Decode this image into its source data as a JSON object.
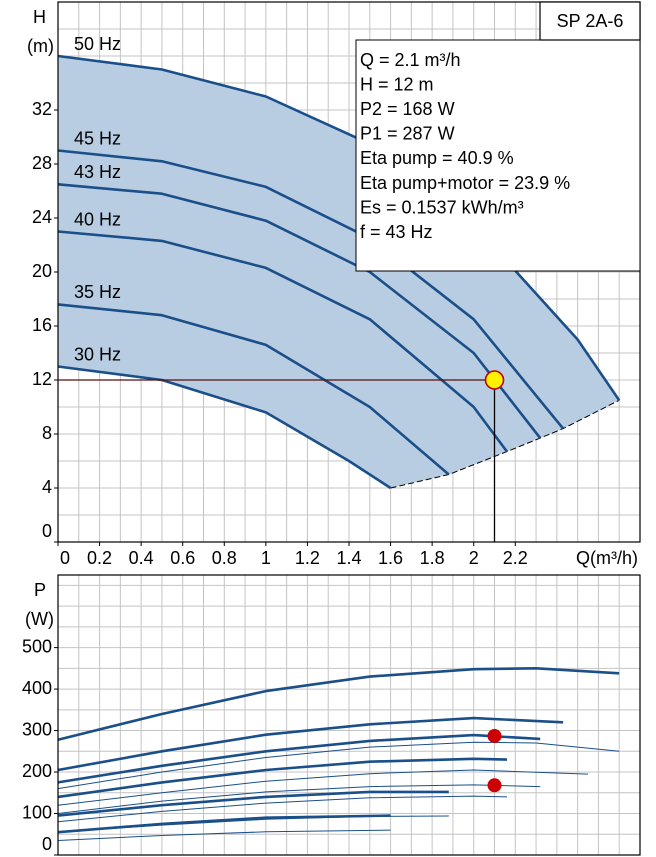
{
  "chart_data": [
    {
      "type": "line",
      "title": "SP 2A-6",
      "ylabel": "H",
      "yunit": "(m)",
      "xlabel": "Q(m³/h)",
      "xlim": [
        0,
        2.8
      ],
      "ylim": [
        0,
        40
      ],
      "xticks": [
        0,
        0.2,
        0.4,
        0.6,
        0.8,
        1,
        1.2,
        1.4,
        1.6,
        1.8,
        2,
        2.2
      ],
      "yticks": [
        0,
        4,
        8,
        12,
        16,
        20,
        24,
        28,
        32
      ],
      "xgrid": [
        0,
        0.1,
        0.2,
        0.3,
        0.4,
        0.5,
        0.6,
        0.7,
        0.8,
        0.9,
        1,
        1.1,
        1.2,
        1.3,
        1.4,
        1.5,
        1.6,
        1.7,
        1.8,
        1.9,
        2,
        2.1,
        2.2,
        2.3,
        2.4,
        2.5,
        2.6,
        2.7,
        2.8
      ],
      "ygrid": [
        0,
        2,
        4,
        6,
        8,
        10,
        12,
        14,
        16,
        18,
        20,
        22,
        24,
        26,
        28,
        30,
        32,
        34,
        36,
        38,
        40
      ],
      "color": "#1b4f8a",
      "area_color": "#b9cde2",
      "series": [
        {
          "name": "50 Hz",
          "x": [
            0,
            0.5,
            1,
            1.5,
            2,
            2.5,
            2.7
          ],
          "values": [
            36,
            35,
            33,
            29.5,
            23.5,
            15,
            10.5
          ]
        },
        {
          "name": "45 Hz",
          "x": [
            0,
            0.5,
            1,
            1.5,
            2,
            2.43
          ],
          "values": [
            29,
            28.2,
            26.3,
            22.5,
            16.5,
            8.4
          ]
        },
        {
          "name": "43 Hz",
          "x": [
            0,
            0.5,
            1,
            1.5,
            2,
            2.32
          ],
          "values": [
            26.5,
            25.8,
            23.8,
            20,
            14,
            7.7
          ]
        },
        {
          "name": "40 Hz",
          "x": [
            0,
            0.5,
            1,
            1.5,
            2,
            2.16
          ],
          "values": [
            23,
            22.3,
            20.3,
            16.5,
            10,
            6.7
          ]
        },
        {
          "name": "35 Hz",
          "x": [
            0,
            0.5,
            1,
            1.5,
            1.88
          ],
          "values": [
            17.6,
            16.8,
            14.6,
            10,
            5
          ]
        },
        {
          "name": "30 Hz",
          "x": [
            0,
            0.5,
            1,
            1.4,
            1.6
          ],
          "values": [
            13,
            12,
            9.6,
            6,
            4
          ]
        }
      ],
      "operating_point": {
        "x": 2.1,
        "y": 12
      },
      "annotations": [
        "Q = 2.1 m³/h",
        "H = 12 m",
        "P2 = 168 W",
        "P1 = 287 W",
        "Eta pump = 40.9 %",
        "Eta pump+motor = 23.9 %",
        "Es = 0.1537 kWh/m³",
        "f = 43 Hz"
      ]
    },
    {
      "type": "line",
      "ylabel": "P",
      "yunit": "(W)",
      "xlim": [
        0,
        2.8
      ],
      "ylim": [
        0,
        675
      ],
      "yticks": [
        0,
        100,
        200,
        300,
        400,
        500
      ],
      "xgrid": [
        0,
        0.1,
        0.2,
        0.3,
        0.4,
        0.5,
        0.6,
        0.7,
        0.8,
        0.9,
        1,
        1.1,
        1.2,
        1.3,
        1.4,
        1.5,
        1.6,
        1.7,
        1.8,
        1.9,
        2,
        2.1,
        2.2,
        2.3,
        2.4,
        2.5,
        2.6,
        2.7,
        2.8
      ],
      "ygrid": [
        0,
        50,
        100,
        150,
        200,
        250,
        300,
        350,
        400,
        450,
        500,
        550,
        600,
        650
      ],
      "color": "#1b4f8a",
      "point_color": "#cc0000",
      "series": [
        {
          "line_width": 2.6,
          "x": [
            0,
            0.5,
            1,
            1.5,
            2,
            2.3,
            2.7
          ],
          "values": [
            278,
            340,
            395,
            430,
            448,
            450,
            438
          ]
        },
        {
          "line_width": 1,
          "x": [
            0,
            0.5,
            1,
            1.5,
            2,
            2.3,
            2.7
          ],
          "values": [
            160,
            200,
            235,
            260,
            272,
            270,
            250
          ]
        },
        {
          "line_width": 2.6,
          "x": [
            0,
            0.5,
            1,
            1.5,
            2,
            2.43
          ],
          "values": [
            205,
            250,
            290,
            315,
            330,
            320
          ]
        },
        {
          "line_width": 1,
          "x": [
            0,
            0.5,
            1,
            1.5,
            2,
            2.55
          ],
          "values": [
            120,
            150,
            178,
            196,
            205,
            195
          ]
        },
        {
          "line_width": 2.6,
          "x": [
            0,
            0.5,
            1,
            1.5,
            2,
            2.32
          ],
          "values": [
            175,
            215,
            250,
            275,
            289,
            280
          ]
        },
        {
          "line_width": 1,
          "x": [
            0,
            0.5,
            1,
            1.5,
            2,
            2.32
          ],
          "values": [
            100,
            130,
            152,
            165,
            169,
            165
          ]
        },
        {
          "line_width": 2.6,
          "x": [
            0,
            0.5,
            1,
            1.5,
            2,
            2.16
          ],
          "values": [
            140,
            175,
            205,
            225,
            232,
            230
          ]
        },
        {
          "line_width": 1,
          "x": [
            0,
            0.5,
            1,
            1.5,
            2,
            2.16
          ],
          "values": [
            80,
            105,
            125,
            138,
            142,
            140
          ]
        },
        {
          "line_width": 2.6,
          "x": [
            0,
            0.5,
            1,
            1.5,
            1.88
          ],
          "values": [
            95,
            120,
            140,
            152,
            152
          ]
        },
        {
          "line_width": 1,
          "x": [
            0,
            0.5,
            1,
            1.5,
            1.88
          ],
          "values": [
            55,
            72,
            86,
            93,
            94
          ]
        },
        {
          "line_width": 2.6,
          "x": [
            0,
            0.5,
            1,
            1.6
          ],
          "values": [
            55,
            75,
            90,
            95
          ]
        },
        {
          "line_width": 1,
          "x": [
            0,
            0.5,
            1,
            1.6
          ],
          "values": [
            35,
            47,
            56,
            60
          ]
        }
      ],
      "points": [
        {
          "x": 2.1,
          "y": 287
        },
        {
          "x": 2.1,
          "y": 168
        }
      ]
    }
  ]
}
